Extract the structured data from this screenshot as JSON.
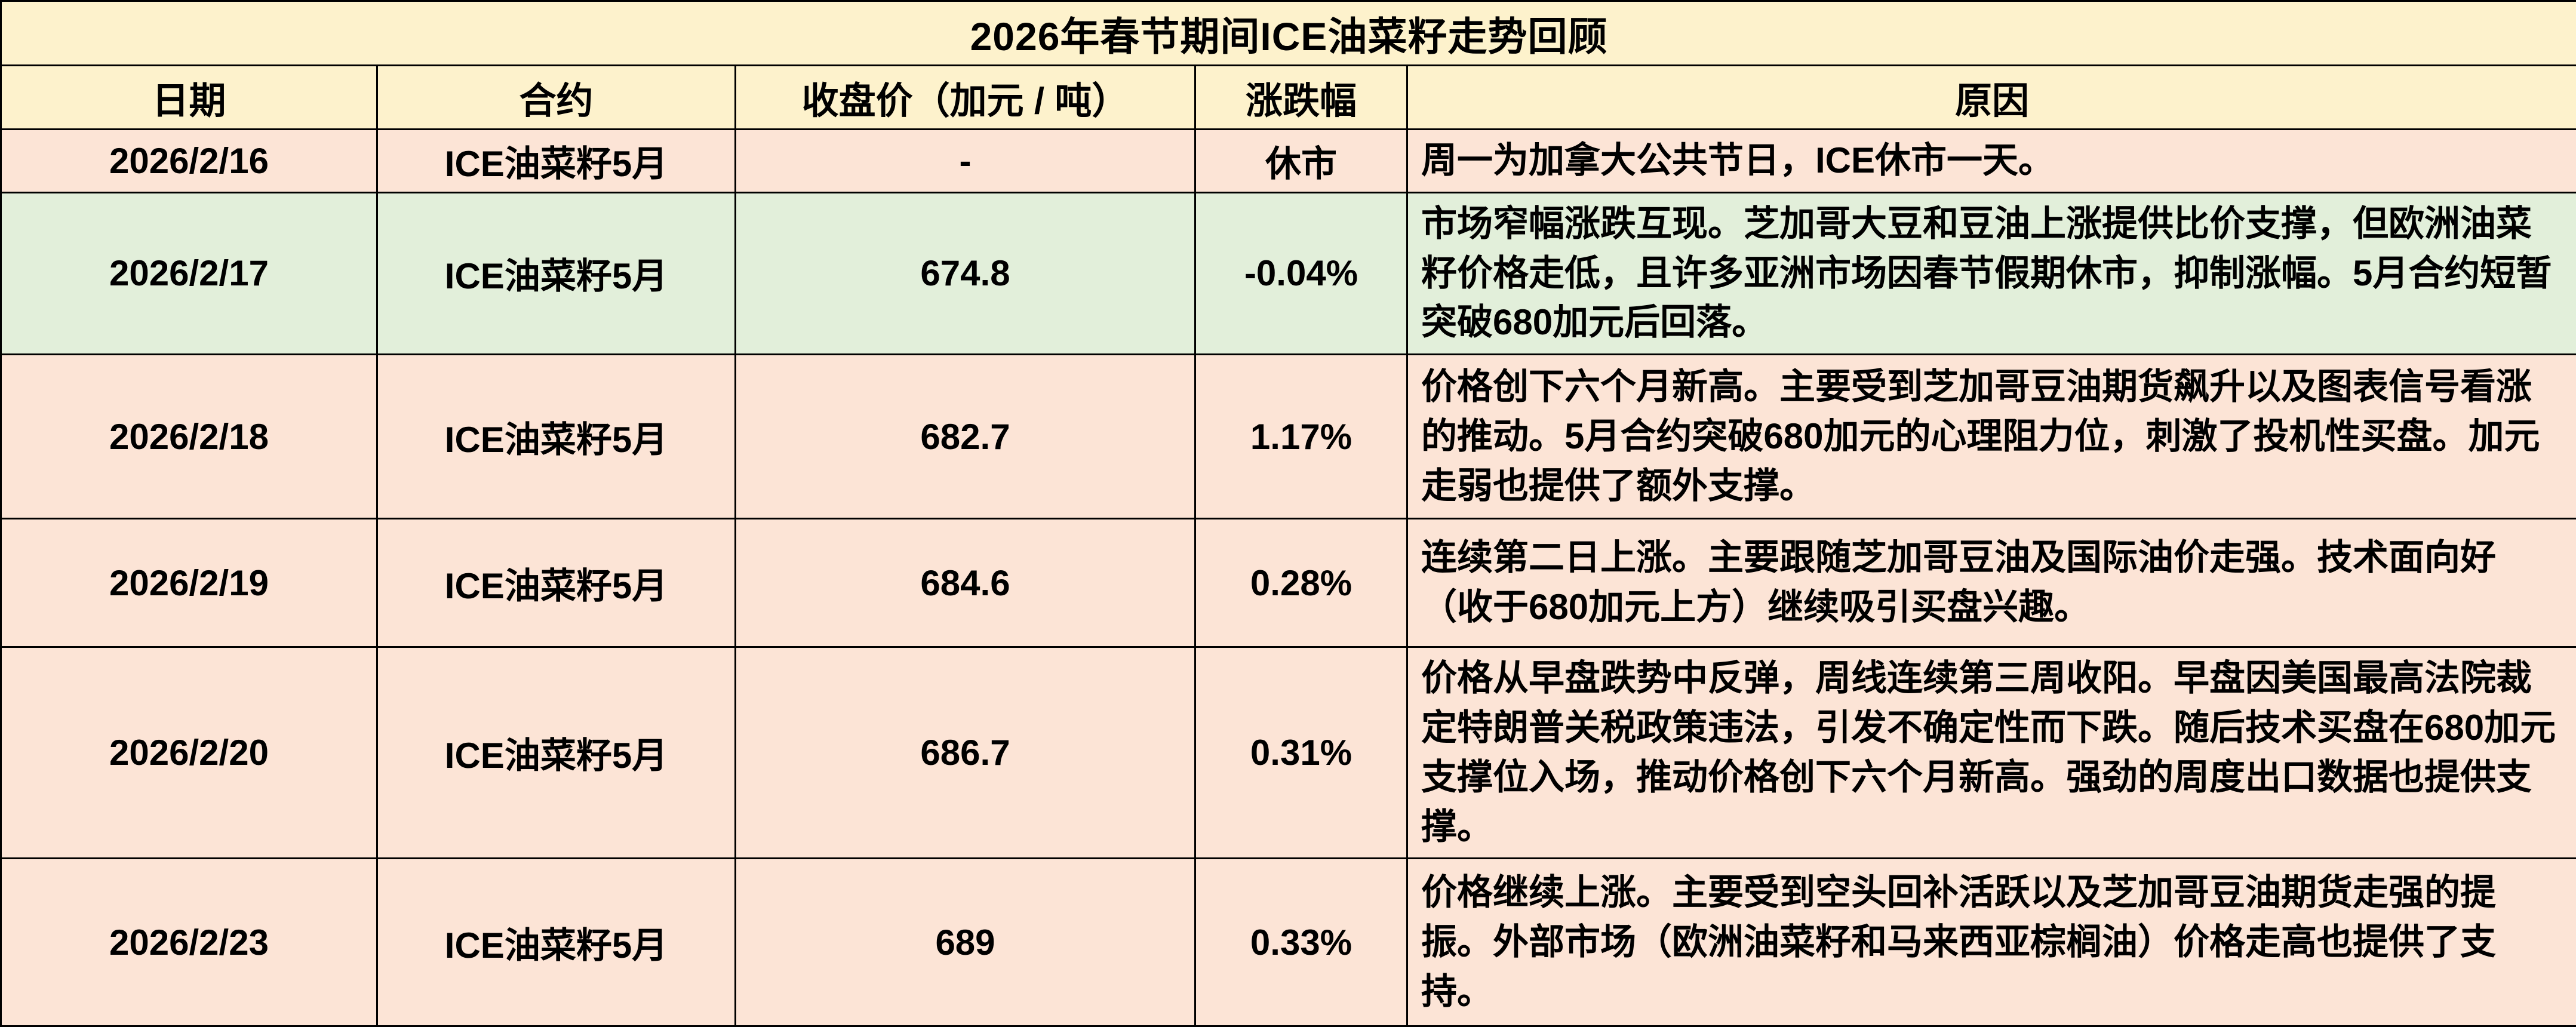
{
  "title": "2026年春节期间ICE油菜籽走势回顾",
  "columns": [
    "日期",
    "合约",
    "收盘价（加元 / 吨）",
    "涨跌幅",
    "原因"
  ],
  "rows": [
    {
      "date": "2026/2/16",
      "contract": "ICE油菜籽5月",
      "close": "-",
      "change": "休市",
      "reason": "周一为加拿大公共节日，ICE休市一天。",
      "bg": "pink"
    },
    {
      "date": "2026/2/17",
      "contract": "ICE油菜籽5月",
      "close": "674.8",
      "change": "-0.04%",
      "reason": "市场窄幅涨跌互现。芝加哥大豆和豆油上涨提供比价支撑，但欧洲油菜籽价格走低，且许多亚洲市场因春节假期休市，抑制涨幅。5月合约短暂突破680加元后回落。",
      "bg": "green"
    },
    {
      "date": "2026/2/18",
      "contract": "ICE油菜籽5月",
      "close": "682.7",
      "change": "1.17%",
      "reason": "价格创下六个月新高。主要受到芝加哥豆油期货飙升以及图表信号看涨的推动。5月合约突破680加元的心理阻力位，刺激了投机性买盘。加元走弱也提供了额外支撑。",
      "bg": "pink"
    },
    {
      "date": "2026/2/19",
      "contract": "ICE油菜籽5月",
      "close": "684.6",
      "change": "0.28%",
      "reason": "连续第二日上涨。主要跟随芝加哥豆油及国际油价走强。技术面向好（收于680加元上方）继续吸引买盘兴趣。",
      "bg": "pink"
    },
    {
      "date": "2026/2/20",
      "contract": "ICE油菜籽5月",
      "close": "686.7",
      "change": "0.31%",
      "reason": "价格从早盘跌势中反弹，周线连续第三周收阳。早盘因美国最高法院裁定特朗普关税政策违法，引发不确定性而下跌。随后技术买盘在680加元支撑位入场，推动价格创下六个月新高。强劲的周度出口数据也提供支撑。",
      "bg": "pink"
    },
    {
      "date": "2026/2/23",
      "contract": "ICE油菜籽5月",
      "close": "689",
      "change": "0.33%",
      "reason": "价格继续上涨。主要受到空头回补活跃以及芝加哥豆油期货走强的提振。外部市场（欧洲油菜籽和马来西亚棕榈油）价格走高也提供了支持。",
      "bg": "pink"
    }
  ],
  "colors": {
    "header_bg": "#FDF2CC",
    "row_pink": "#FCE4D6",
    "row_green": "#E2EFDA",
    "border": "#000000",
    "text": "#000000"
  },
  "chart_data": {
    "type": "table",
    "title": "2026年春节期间ICE油菜籽走势回顾",
    "columns": [
      "日期",
      "合约",
      "收盘价（加元 / 吨）",
      "涨跌幅"
    ],
    "x": [
      "2026/2/16",
      "2026/2/17",
      "2026/2/18",
      "2026/2/19",
      "2026/2/20",
      "2026/2/23"
    ],
    "close_values": [
      null,
      674.8,
      682.7,
      684.6,
      686.7,
      689
    ],
    "change_percent": [
      null,
      -0.04,
      1.17,
      0.28,
      0.31,
      0.33
    ],
    "notes": [
      "休市",
      "-0.04%",
      "1.17%",
      "0.28%",
      "0.31%",
      "0.33%"
    ]
  }
}
